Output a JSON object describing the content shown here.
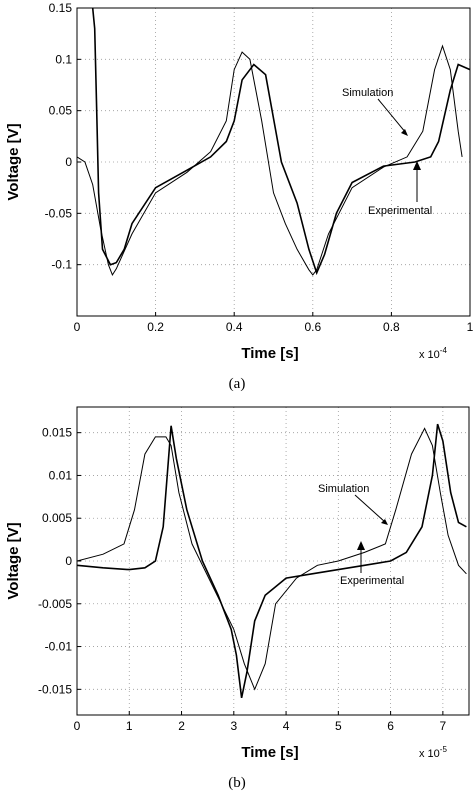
{
  "chart_data": [
    {
      "type": "line",
      "panel": "(a)",
      "xlabel": "Time [s]",
      "ylabel": "Voltage [V]",
      "x_multiplier": "x 10",
      "x_exponent": "-4",
      "xlim": [
        0,
        1
      ],
      "ylim": [
        -0.15,
        0.15
      ],
      "xticks": [
        0,
        0.2,
        0.4,
        0.6,
        0.8,
        1
      ],
      "yticks": [
        -0.1,
        -0.05,
        0,
        0.05,
        0.1,
        0.15
      ],
      "xtick_labels": [
        "0",
        "0.2",
        "0.4",
        "0.6",
        "0.8",
        "1"
      ],
      "ytick_labels": [
        "-0.1",
        "-0.05",
        "0",
        "0.05",
        "0.1",
        "0.15"
      ],
      "grid": true,
      "series": [
        {
          "name": "Simulation",
          "x": [
            0,
            0.02,
            0.04,
            0.06,
            0.08,
            0.09,
            0.1,
            0.14,
            0.2,
            0.28,
            0.34,
            0.38,
            0.4,
            0.42,
            0.44,
            0.47,
            0.5,
            0.53,
            0.56,
            0.59,
            0.6,
            0.61,
            0.64,
            0.7,
            0.78,
            0.84,
            0.88,
            0.91,
            0.93,
            0.95,
            0.97,
            0.98
          ],
          "y": [
            0.005,
            0.0,
            -0.022,
            -0.065,
            -0.1,
            -0.11,
            -0.104,
            -0.07,
            -0.03,
            -0.01,
            0.01,
            0.04,
            0.09,
            0.107,
            0.1,
            0.04,
            -0.03,
            -0.06,
            -0.085,
            -0.105,
            -0.11,
            -0.105,
            -0.07,
            -0.025,
            -0.005,
            0.005,
            0.03,
            0.09,
            0.113,
            0.09,
            0.03,
            0.005
          ]
        },
        {
          "name": "Experimental",
          "x": [
            0.04,
            0.045,
            0.05,
            0.055,
            0.065,
            0.085,
            0.1,
            0.12,
            0.14,
            0.2,
            0.28,
            0.34,
            0.38,
            0.4,
            0.42,
            0.45,
            0.48,
            0.52,
            0.56,
            0.59,
            0.61,
            0.63,
            0.66,
            0.7,
            0.78,
            0.86,
            0.9,
            0.92,
            0.95,
            0.97,
            1.0
          ],
          "y": [
            0.15,
            0.13,
            0.05,
            -0.03,
            -0.085,
            -0.1,
            -0.098,
            -0.085,
            -0.06,
            -0.025,
            -0.008,
            0.005,
            0.02,
            0.04,
            0.08,
            0.095,
            0.085,
            0.0,
            -0.04,
            -0.085,
            -0.108,
            -0.09,
            -0.05,
            -0.02,
            -0.004,
            0.0,
            0.005,
            0.02,
            0.07,
            0.095,
            0.09
          ]
        }
      ],
      "annotations": [
        "Simulation",
        "Experimental"
      ],
      "caption": "(a)"
    },
    {
      "type": "line",
      "panel": "(b)",
      "xlabel": "Time [s]",
      "ylabel": "Voltage [V]",
      "x_multiplier": "x 10",
      "x_exponent": "-5",
      "xlim": [
        0,
        7.5
      ],
      "ylim": [
        -0.018,
        0.018
      ],
      "xticks": [
        0,
        1,
        2,
        3,
        4,
        5,
        6,
        7
      ],
      "yticks": [
        -0.015,
        -0.01,
        -0.005,
        0,
        0.005,
        0.01,
        0.015
      ],
      "xtick_labels": [
        "0",
        "1",
        "2",
        "3",
        "4",
        "5",
        "6",
        "7"
      ],
      "ytick_labels": [
        "-0.015",
        "-0.01",
        "-0.005",
        "0",
        "0.005",
        "0.01",
        "0.015"
      ],
      "grid": true,
      "series": [
        {
          "name": "Simulation",
          "x": [
            0,
            0.5,
            0.9,
            1.1,
            1.3,
            1.5,
            1.7,
            1.8,
            1.95,
            2.2,
            2.6,
            3.0,
            3.2,
            3.4,
            3.6,
            3.8,
            4.2,
            4.6,
            5.0,
            5.5,
            5.9,
            6.1,
            6.4,
            6.65,
            6.8,
            6.95,
            7.1,
            7.3,
            7.45
          ],
          "y": [
            0.0,
            0.0008,
            0.002,
            0.006,
            0.0125,
            0.0145,
            0.0145,
            0.0135,
            0.008,
            0.002,
            -0.003,
            -0.008,
            -0.012,
            -0.015,
            -0.012,
            -0.005,
            -0.002,
            -0.0005,
            0.0,
            0.001,
            0.002,
            0.006,
            0.0125,
            0.0155,
            0.0135,
            0.008,
            0.003,
            -0.0005,
            -0.0015
          ]
        },
        {
          "name": "Experimental",
          "x": [
            0,
            0.5,
            1.0,
            1.3,
            1.5,
            1.65,
            1.8,
            1.9,
            2.1,
            2.4,
            2.7,
            2.95,
            3.05,
            3.15,
            3.25,
            3.4,
            3.6,
            3.8,
            4.0,
            4.5,
            5.0,
            5.5,
            6.0,
            6.3,
            6.6,
            6.8,
            6.9,
            7.0,
            7.15,
            7.3,
            7.45
          ],
          "y": [
            -0.0005,
            -0.0008,
            -0.001,
            -0.0008,
            0.0,
            0.004,
            0.0158,
            0.012,
            0.006,
            0.0,
            -0.004,
            -0.008,
            -0.011,
            -0.016,
            -0.013,
            -0.007,
            -0.004,
            -0.003,
            -0.002,
            -0.0015,
            -0.001,
            -0.0005,
            0.0,
            0.001,
            0.004,
            0.01,
            0.016,
            0.014,
            0.008,
            0.0045,
            0.004
          ]
        }
      ],
      "annotations": [
        "Simulation",
        "Experimental"
      ],
      "caption": "(b)"
    }
  ]
}
